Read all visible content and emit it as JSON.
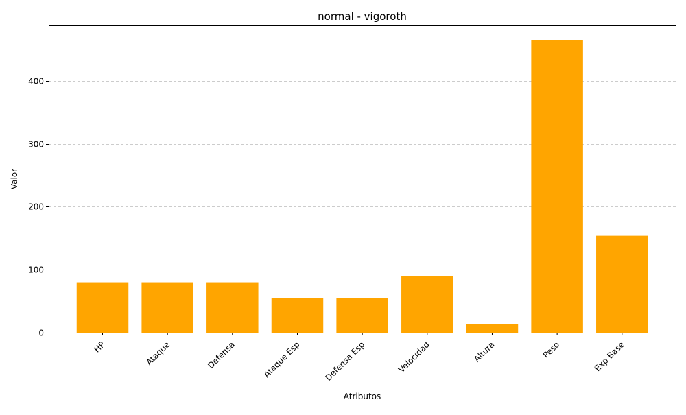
{
  "chart_data": {
    "type": "bar",
    "title": "normal - vigoroth",
    "xlabel": "Atributos",
    "ylabel": "Valor",
    "categories": [
      "HP",
      "Ataque",
      "Defensa",
      "Ataque Esp",
      "Defensa Esp",
      "Velocidad",
      "Altura",
      "Peso",
      "Exp Base"
    ],
    "values": [
      80,
      80,
      80,
      55,
      55,
      90,
      14,
      465,
      154
    ],
    "ylim": [
      0,
      488
    ],
    "yticks": [
      0,
      100,
      200,
      300,
      400
    ],
    "grid": "y-dashed",
    "bar_color": "#ffa500",
    "legend": "none"
  }
}
